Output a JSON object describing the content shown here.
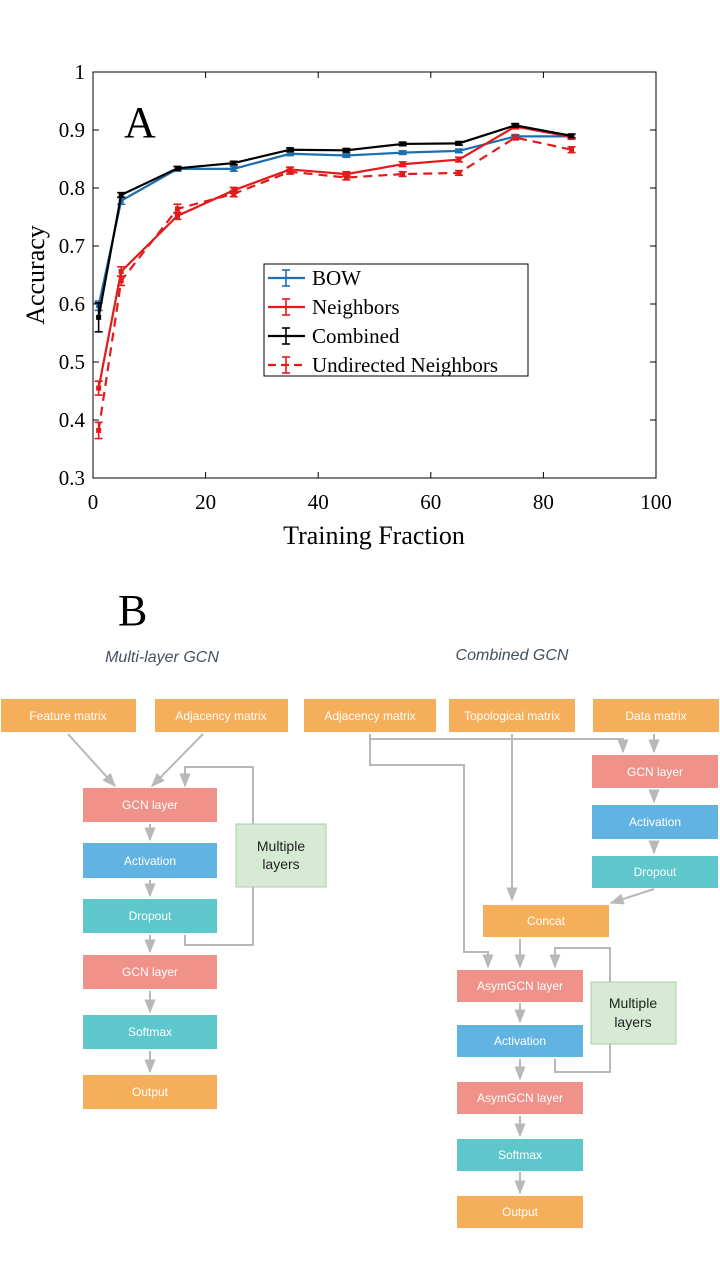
{
  "panel_a": {
    "label": "A"
  },
  "panel_b": {
    "label": "B"
  },
  "chart_data": {
    "type": "line",
    "xlabel": "Training Fraction",
    "ylabel": "Accuracy",
    "xlim": [
      0,
      100
    ],
    "ylim": [
      0.3,
      1.0
    ],
    "xticks": [
      "0",
      "20",
      "40",
      "60",
      "80",
      "100"
    ],
    "yticks": [
      "0.3",
      "0.4",
      "0.5",
      "0.6",
      "0.7",
      "0.8",
      "0.9",
      "1"
    ],
    "x": [
      1,
      5,
      15,
      25,
      35,
      45,
      55,
      65,
      75,
      85
    ],
    "legend_position": "center-right",
    "grid": false,
    "series": [
      {
        "name": "BOW",
        "color": "#1f6fb0",
        "dash": "solid",
        "values": [
          0.597,
          0.778,
          0.833,
          0.833,
          0.859,
          0.856,
          0.861,
          0.864,
          0.889,
          0.889
        ],
        "errors": [
          0.008,
          0.006,
          0.004,
          0.004,
          0.003,
          0.003,
          0.003,
          0.003,
          0.003,
          0.003
        ]
      },
      {
        "name": "Neighbors",
        "color": "#e31a1c",
        "dash": "solid",
        "values": [
          0.455,
          0.656,
          0.752,
          0.796,
          0.832,
          0.824,
          0.841,
          0.849,
          0.906,
          0.888
        ],
        "errors": [
          0.012,
          0.008,
          0.006,
          0.005,
          0.004,
          0.004,
          0.004,
          0.004,
          0.004,
          0.004
        ]
      },
      {
        "name": "Combined",
        "color": "#000000",
        "dash": "solid",
        "values": [
          0.577,
          0.788,
          0.834,
          0.843,
          0.866,
          0.865,
          0.876,
          0.877,
          0.908,
          0.89
        ],
        "errors": [
          0.025,
          0.004,
          0.003,
          0.003,
          0.003,
          0.003,
          0.003,
          0.003,
          0.003,
          0.003
        ]
      },
      {
        "name": "Undirected Neighbors",
        "color": "#e31a1c",
        "dash": "dashed",
        "values": [
          0.382,
          0.64,
          0.764,
          0.79,
          0.828,
          0.818,
          0.824,
          0.826,
          0.887,
          0.866
        ],
        "errors": [
          0.014,
          0.008,
          0.008,
          0.005,
          0.004,
          0.004,
          0.004,
          0.004,
          0.004,
          0.005
        ]
      }
    ]
  },
  "diagram": {
    "left_title": "Multi-layer GCN",
    "right_title": "Combined GCN",
    "colors": {
      "orange": "#f5ae5a",
      "red": "#f0928a",
      "blue": "#61b3e2",
      "teal": "#5ec7cc",
      "green_box": "#d6ead4",
      "arrow": "#b8b8b8"
    },
    "left": {
      "feature_matrix": "Feature matrix",
      "adjacency_matrix": "Adjacency matrix",
      "gcn_layer_1": "GCN layer",
      "activation": "Activation",
      "dropout": "Dropout",
      "gcn_layer_2": "GCN layer",
      "softmax": "Softmax",
      "output": "Output",
      "multiple_layers": [
        "Multiple",
        "layers"
      ]
    },
    "right": {
      "adjacency_matrix": "Adjacency matrix",
      "topological_matrix": "Topological matrix",
      "data_matrix": "Data matrix",
      "gcn_layer": "GCN layer",
      "activation_top": "Activation",
      "dropout": "Dropout",
      "concat": "Concat",
      "asymgcn_layer_1": "AsymGCN layer",
      "activation": "Activation",
      "asymgcn_layer_2": "AsymGCN layer",
      "softmax": "Softmax",
      "output": "Output",
      "multiple_layers": [
        "Multiple",
        "layers"
      ]
    }
  }
}
